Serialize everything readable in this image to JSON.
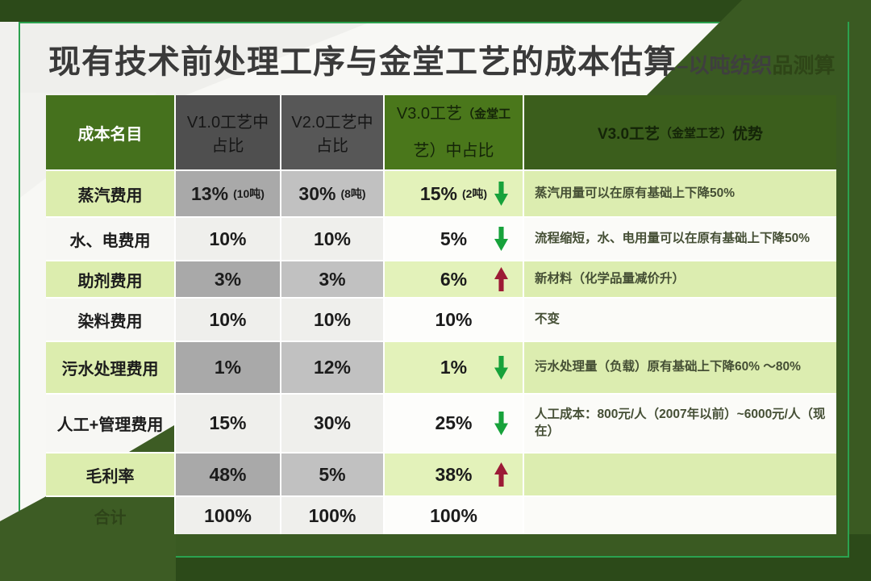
{
  "slide": {
    "title": "现有技术前处理工序与金堂工艺的成本估算",
    "title_suffix": "–以吨纺织",
    "title_suffix_obscured": "品测算"
  },
  "table": {
    "headers": {
      "col1": "成本名目",
      "col2": "V1.0工艺中占比",
      "col3": "V2.0工艺中占比",
      "col4_main": "V3.0工艺",
      "col4_paren": "（金堂工",
      "col4_rest": "艺）中占比",
      "col5_main": "V3.0工艺",
      "col5_paren": "（金堂工艺）",
      "col5_rest": "优势"
    },
    "rows": [
      {
        "name": "蒸汽费用",
        "v1": "13%",
        "v1_note": "(10吨)",
        "v2": "30%",
        "v2_note": "(8吨)",
        "v3": "15%",
        "v3_note": "(2吨)",
        "arrow_class": "arrow down",
        "advantage": "蒸汽用量可以在原有基础上下降50%"
      },
      {
        "name": "水、电费用",
        "v1": "10%",
        "v2": "10%",
        "v3": "5%",
        "arrow_class": "arrow down",
        "advantage": "流程缩短，水、电用量可以在原有基础上下降50%"
      },
      {
        "name": "助剂费用",
        "v1": "3%",
        "v2": "3%",
        "v3": "6%",
        "arrow_class": "arrow up",
        "advantage": "新材料（化学品量减价升）"
      },
      {
        "name": "染料费用",
        "v1": "10%",
        "v2": "10%",
        "v3": "10%",
        "arrow_class": "arrow hide",
        "advantage": "不变"
      },
      {
        "name": "污水处理费用",
        "v1": "1%",
        "v2": "12%",
        "v3": "1%",
        "arrow_class": "arrow down",
        "advantage": "污水处理量（负载）原有基础上下降60% ～80%"
      },
      {
        "name": "人工+管理费用",
        "v1": "15%",
        "v2": "30%",
        "v3": "25%",
        "arrow_class": "arrow down",
        "advantage": "人工成本：800元/人（2007年以前）~6000元/人（现在）"
      },
      {
        "name": "毛利率",
        "v1": "48%",
        "v2": "5%",
        "v3": "38%",
        "arrow_class": "arrow up",
        "advantage": ""
      },
      {
        "name": "合计",
        "v1": "100%",
        "v2": "100%",
        "v3": "100%",
        "arrow_class": "arrow hide",
        "advantage": ""
      }
    ]
  },
  "colors": {
    "dark_green_bg": "#2c4a19",
    "triangle_green": "#3a5a22",
    "header_col1_green": "#45711d",
    "header_v3_green": "#4a771b",
    "header_adv_green": "#3b5e1c",
    "header_gray": "#4f4f4f",
    "row_light_green": "#dcedb0",
    "cell_gray_v1": "#a9a9a9",
    "cell_gray_v2": "#c1c1c1",
    "card_border_green": "#2ba24f",
    "arrow_down_green": "#17a23b",
    "arrow_up_red": "#9c1b36"
  }
}
